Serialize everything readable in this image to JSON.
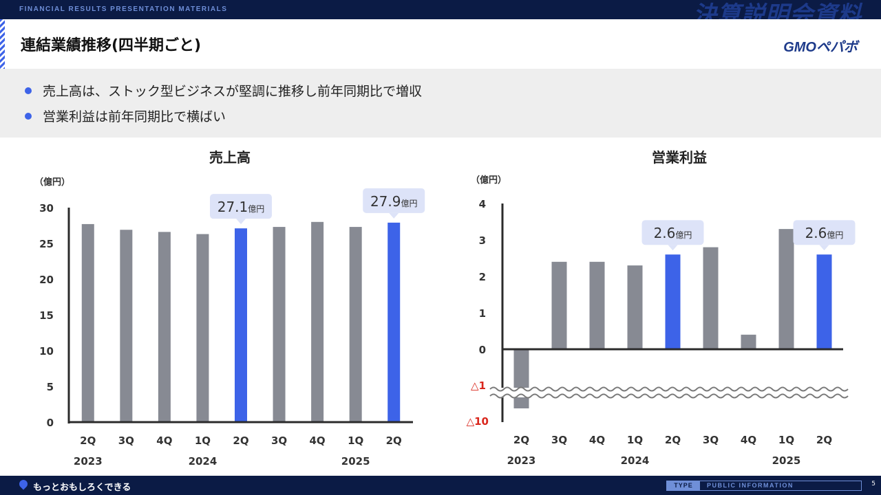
{
  "header": {
    "subtitle": "FINANCIAL RESULTS PRESENTATION MATERIALS",
    "big_title": "決算説明会資料",
    "page_title": "連結業績推移(四半期ごと)",
    "logo": "GMOペパボ"
  },
  "bullets": [
    "売上高は、ストック型ビジネスが堅調に推移し前年同期比で増収",
    "営業利益は前年同期比で横ばい"
  ],
  "footer": {
    "slogan": "もっとおもしろくできる",
    "type_label": "TYPE",
    "info_label": "PUBLIC INFORMATION",
    "page_number": "5"
  },
  "colors": {
    "gray_bar": "#878a93",
    "blue_bar": "#3d63e8",
    "callout": "#dde3f8",
    "negative": "#d9261c",
    "navy": "#0b1b45"
  },
  "chart_data": [
    {
      "type": "bar",
      "title": "売上高",
      "unit": "（億円）",
      "categories": [
        "2Q",
        "3Q",
        "4Q",
        "1Q",
        "2Q",
        "3Q",
        "4Q",
        "1Q",
        "2Q"
      ],
      "years": [
        {
          "label": "2023",
          "index": 0
        },
        {
          "label": "2024",
          "index": 3
        },
        {
          "label": "2025",
          "index": 7
        }
      ],
      "values": [
        27.7,
        26.9,
        26.6,
        26.3,
        27.1,
        27.3,
        28.0,
        27.3,
        27.9
      ],
      "highlight": [
        4,
        8
      ],
      "callouts": [
        {
          "index": 4,
          "value": "27.1",
          "unit": "億円"
        },
        {
          "index": 8,
          "value": "27.9",
          "unit": "億円"
        }
      ],
      "yticks": [
        "0",
        "5",
        "10",
        "15",
        "20",
        "25",
        "30"
      ],
      "ylim": [
        0,
        30
      ]
    },
    {
      "type": "bar",
      "title": "営業利益",
      "unit": "（億円）",
      "categories": [
        "2Q",
        "3Q",
        "4Q",
        "1Q",
        "2Q",
        "3Q",
        "4Q",
        "1Q",
        "2Q"
      ],
      "years": [
        {
          "label": "2023",
          "index": 0
        },
        {
          "label": "2024",
          "index": 3
        },
        {
          "label": "2025",
          "index": 7
        }
      ],
      "values": [
        -10.0,
        2.4,
        2.4,
        2.3,
        2.6,
        2.8,
        0.4,
        3.3,
        2.6
      ],
      "highlight": [
        4,
        8
      ],
      "callouts": [
        {
          "index": 4,
          "value": "2.6",
          "unit": "億円"
        },
        {
          "index": 8,
          "value": "2.6",
          "unit": "億円"
        }
      ],
      "yticks": [
        "0",
        "1",
        "2",
        "3",
        "4"
      ],
      "negative_ticks": [
        "△1",
        "△10"
      ],
      "ylim": [
        -10,
        4
      ],
      "axis_break": true
    }
  ]
}
